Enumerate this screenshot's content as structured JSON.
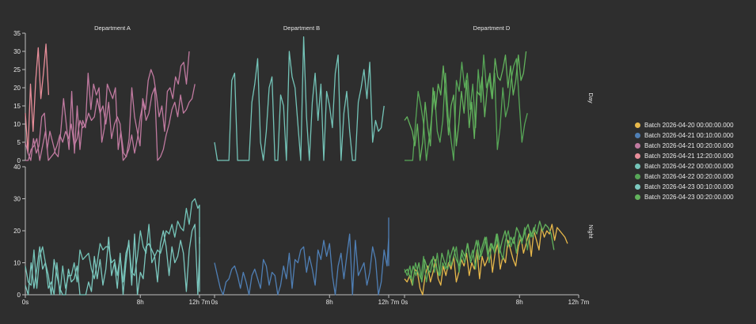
{
  "chart_data": {
    "type": "line",
    "facet_columns": [
      "Department A",
      "Department B",
      "Department D"
    ],
    "facet_rows": [
      "Day",
      "Night"
    ],
    "x_tick_labels": [
      "0s",
      "8h",
      "12h 7m"
    ],
    "x_tick_hours": [
      0,
      8,
      12.1167
    ],
    "xlim_hours": [
      0,
      12.1167
    ],
    "y_ticks_top": [
      0,
      5,
      10,
      15,
      20,
      25,
      30,
      35
    ],
    "ylim_top": [
      0,
      35
    ],
    "y_ticks_bottom": [
      0,
      10,
      20,
      30,
      40
    ],
    "ylim_bottom": [
      0,
      40
    ],
    "grid": false,
    "legend_position": "right",
    "series": [
      {
        "name": "Batch 2026-04-20 00:00:00.000",
        "color": "#e8b84a"
      },
      {
        "name": "Batch 2026-04-21 00:10:00.000",
        "color": "#4f7fb5"
      },
      {
        "name": "Batch 2026-04-21 00:20:00.000",
        "color": "#c07aa0"
      },
      {
        "name": "Batch 2026-04-21 12:20:00.000",
        "color": "#e88e9a"
      },
      {
        "name": "Batch 2026-04-22 00:00:00.000",
        "color": "#74c4b8"
      },
      {
        "name": "Batch 2026-04-22 00:20:00.000",
        "color": "#57a657"
      },
      {
        "name": "Batch 2026-04-23 00:10:00.000",
        "color": "#7cc8bf"
      },
      {
        "name": "Batch 2026-04-23 00:20:00.000",
        "color": "#62b25c"
      }
    ],
    "panels": [
      {
        "col": 0,
        "row": 0,
        "series": 3,
        "x_step_hours": 0.18,
        "values": [
          13,
          2,
          21,
          8,
          22,
          31,
          17,
          24,
          32,
          18
        ]
      },
      {
        "col": 0,
        "row": 0,
        "series": 2,
        "x_step_hours": 0.19,
        "values": [
          5,
          2,
          0,
          6,
          2,
          4,
          12,
          13,
          3,
          8,
          5,
          2,
          1,
          8,
          17,
          10,
          3,
          19,
          2,
          15,
          3,
          11,
          9,
          24,
          14,
          21,
          18,
          20,
          5,
          9,
          21,
          19,
          17,
          20,
          3,
          8,
          2,
          1,
          6,
          20,
          12,
          8,
          4,
          17,
          14,
          22,
          25,
          23,
          18,
          12,
          15,
          8,
          19,
          20,
          17,
          23,
          21,
          26,
          27,
          21,
          30
        ]
      },
      {
        "col": 0,
        "row": 0,
        "series": 2,
        "x_step_hours": 0.2,
        "values": [
          0,
          0,
          3,
          4,
          6,
          0,
          4,
          8,
          0,
          1,
          2,
          4,
          7,
          5,
          8,
          6,
          10,
          4,
          6,
          11,
          9,
          10,
          13,
          11,
          12,
          17,
          13,
          15,
          10,
          16,
          6,
          10,
          12,
          10,
          0,
          1,
          3,
          7,
          2,
          6,
          12,
          16,
          11,
          13,
          18,
          20,
          0,
          1,
          3,
          7,
          10,
          14,
          16,
          12,
          18,
          13,
          14,
          16,
          17,
          21
        ]
      },
      {
        "col": 1,
        "row": 0,
        "series": 4,
        "x_step_hours": 0.2,
        "values": [
          5,
          0,
          0,
          0,
          0,
          0,
          22,
          24,
          0,
          0,
          0,
          0,
          0,
          16,
          21,
          28,
          5,
          0,
          8,
          20,
          23,
          0,
          0,
          18,
          15,
          0,
          30,
          23,
          20,
          10,
          0,
          34,
          12,
          0,
          16,
          24,
          11,
          21,
          0,
          19,
          15,
          9,
          24,
          29,
          0,
          13,
          19,
          8,
          0,
          0,
          16,
          20,
          25,
          17,
          27,
          5,
          11,
          8,
          9,
          15
        ]
      },
      {
        "col": 2,
        "row": 0,
        "series": 5,
        "x_step_hours": 0.19,
        "values": [
          0,
          0,
          0,
          0,
          10,
          19,
          15,
          10,
          0,
          6,
          12,
          19,
          8,
          5,
          11,
          24,
          12,
          6,
          0,
          22,
          19,
          27,
          20,
          24,
          14,
          21,
          9,
          25,
          16,
          29,
          20,
          23,
          17,
          24,
          3,
          9,
          20,
          12,
          15,
          22,
          26,
          28,
          16,
          5,
          10,
          13
        ]
      },
      {
        "col": 2,
        "row": 0,
        "series": 7,
        "x_step_hours": 0.18,
        "values": [
          11,
          12,
          10,
          8,
          4,
          10,
          0,
          5,
          16,
          9,
          4,
          20,
          14,
          21,
          18,
          26,
          17,
          7,
          15,
          18,
          4,
          10,
          19,
          13,
          22,
          9,
          16,
          6,
          19,
          18,
          23,
          12,
          20,
          24,
          17,
          28,
          23,
          22,
          25,
          29,
          20,
          26,
          18,
          22,
          29,
          22,
          24,
          30
        ]
      },
      {
        "col": 0,
        "row": 1,
        "series": 4,
        "x_step_hours": 0.2,
        "values": [
          9,
          4,
          3,
          14,
          2,
          12,
          15,
          10,
          2,
          4,
          0,
          10,
          0,
          9,
          2,
          6,
          6,
          10,
          4,
          14,
          11,
          12,
          13,
          8,
          5,
          10,
          16,
          14,
          15,
          15,
          10,
          11,
          6,
          12,
          4,
          13,
          16,
          7,
          6,
          12,
          20,
          15,
          13,
          22,
          10,
          12,
          14,
          13,
          16,
          20,
          19,
          22,
          18,
          23,
          21,
          20,
          27,
          22,
          29,
          30,
          27,
          28,
          16,
          18
        ]
      },
      {
        "col": 0,
        "row": 1,
        "series": 6,
        "x_step_hours": 0.2,
        "values": [
          3,
          0,
          10,
          2,
          8,
          15,
          8,
          10,
          6,
          0,
          11,
          6,
          2,
          0,
          0,
          8,
          4,
          5,
          9,
          0,
          0,
          0,
          4,
          1,
          12,
          5,
          11,
          3,
          8,
          18,
          6,
          10,
          2,
          13,
          0,
          10,
          17,
          3,
          19,
          0,
          7,
          5,
          15,
          16,
          14,
          12,
          4,
          16,
          20,
          15,
          6,
          15,
          10,
          12,
          17,
          13,
          1,
          14,
          20,
          22,
          0,
          13,
          18,
          10,
          7,
          15,
          16,
          14,
          3,
          1,
          10
        ]
      },
      {
        "col": 1,
        "row": 1,
        "series": 1,
        "x_step_hours": 0.2,
        "values": [
          10,
          6,
          2,
          0,
          4,
          5,
          8,
          9,
          6,
          2,
          7,
          4,
          0,
          6,
          8,
          5,
          2,
          11,
          9,
          3,
          7,
          6,
          0,
          3,
          9,
          5,
          13,
          2,
          11,
          10,
          14,
          15,
          7,
          12,
          8,
          3,
          14,
          11,
          17,
          12,
          16,
          6,
          0,
          9,
          13,
          5,
          12,
          19,
          0,
          17,
          6,
          8,
          10,
          3,
          7,
          15,
          11,
          0,
          4,
          14,
          9,
          18,
          12,
          15,
          20,
          17,
          24,
          13,
          9
        ]
      },
      {
        "col": 2,
        "row": 1,
        "series": 0,
        "x_step_hours": 0.18,
        "values": [
          5,
          4,
          6,
          3,
          8,
          7,
          2,
          0,
          6,
          9,
          4,
          7,
          11,
          5,
          3,
          9,
          6,
          10,
          8,
          12,
          4,
          7,
          11,
          9,
          13,
          6,
          10,
          8,
          14,
          5,
          12,
          9,
          11,
          15,
          7,
          13,
          16,
          8,
          12,
          10,
          17,
          14,
          11,
          9,
          15,
          18,
          13,
          16,
          19,
          12,
          20,
          17,
          14,
          21,
          18,
          20,
          19,
          22,
          17,
          21,
          20,
          19,
          18,
          16
        ]
      },
      {
        "col": 2,
        "row": 1,
        "series": 5,
        "x_step_hours": 0.19,
        "values": [
          8,
          6,
          9,
          3,
          10,
          7,
          5,
          12,
          4,
          9,
          11,
          7,
          13,
          6,
          10,
          8,
          14,
          9,
          12,
          15,
          7,
          13,
          10,
          16,
          11,
          14,
          8,
          17,
          12,
          15,
          18,
          10,
          16,
          13,
          19,
          14,
          11,
          17,
          20,
          15,
          18,
          13,
          19,
          16,
          21,
          14,
          20,
          18,
          22
        ]
      },
      {
        "col": 2,
        "row": 1,
        "series": 7,
        "x_step_hours": 0.2,
        "values": [
          7,
          8,
          5,
          9,
          6,
          10,
          4,
          11,
          8,
          7,
          12,
          9,
          6,
          13,
          10,
          8,
          12,
          15,
          11,
          9,
          14,
          12,
          16,
          10,
          13,
          17,
          11,
          15,
          18,
          12,
          16,
          14,
          19,
          13,
          17,
          20,
          15,
          18,
          16,
          21,
          19,
          17,
          20,
          22,
          18,
          21,
          19,
          23,
          20,
          22,
          21,
          19,
          14
        ]
      }
    ]
  }
}
